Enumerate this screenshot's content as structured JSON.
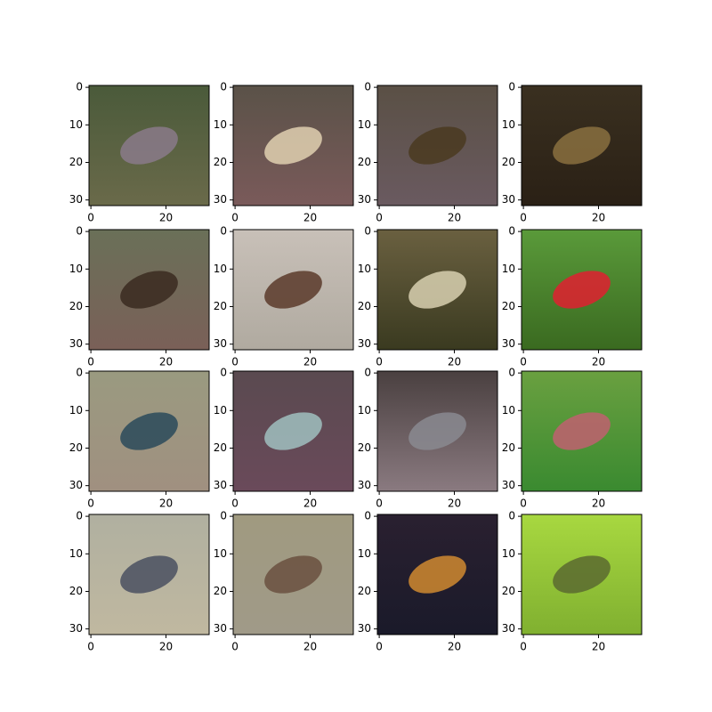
{
  "chart_data": [
    {
      "type": "image",
      "xlim": [
        -0.5,
        31.5
      ],
      "ylim": [
        31.5,
        -0.5
      ],
      "xticks": [
        0,
        20
      ],
      "yticks": [
        0,
        10,
        20,
        30
      ],
      "colors": [
        "#4a5a3a",
        "#6a6a4a",
        "#8a7a8a"
      ]
    },
    {
      "type": "image",
      "xlim": [
        -0.5,
        31.5
      ],
      "ylim": [
        31.5,
        -0.5
      ],
      "xticks": [
        0,
        20
      ],
      "yticks": [
        0,
        10,
        20,
        30
      ],
      "colors": [
        "#5a5248",
        "#7a5a5a",
        "#e0d0b0"
      ]
    },
    {
      "type": "image",
      "xlim": [
        -0.5,
        31.5
      ],
      "ylim": [
        31.5,
        -0.5
      ],
      "xticks": [
        0,
        20
      ],
      "yticks": [
        0,
        10,
        20,
        30
      ],
      "colors": [
        "#5a5045",
        "#6a5a60",
        "#4a3a20"
      ]
    },
    {
      "type": "image",
      "xlim": [
        -0.5,
        31.5
      ],
      "ylim": [
        31.5,
        -0.5
      ],
      "xticks": [
        0,
        20
      ],
      "yticks": [
        0,
        10,
        20,
        30
      ],
      "colors": [
        "#3a3020",
        "#2a2015",
        "#8a7040"
      ]
    },
    {
      "type": "image",
      "xlim": [
        -0.5,
        31.5
      ],
      "ylim": [
        31.5,
        -0.5
      ],
      "xticks": [
        0,
        20
      ],
      "yticks": [
        0,
        10,
        20,
        30
      ],
      "colors": [
        "#6a7058",
        "#7a6058",
        "#3a2a20"
      ]
    },
    {
      "type": "image",
      "xlim": [
        -0.5,
        31.5
      ],
      "ylim": [
        31.5,
        -0.5
      ],
      "xticks": [
        0,
        20
      ],
      "yticks": [
        0,
        10,
        20,
        30
      ],
      "colors": [
        "#c8c0b8",
        "#b0aaa0",
        "#5a3a2a"
      ]
    },
    {
      "type": "image",
      "xlim": [
        -0.5,
        31.5
      ],
      "ylim": [
        31.5,
        -0.5
      ],
      "xticks": [
        0,
        20
      ],
      "yticks": [
        0,
        10,
        20,
        30
      ],
      "colors": [
        "#6a6040",
        "#3a3a20",
        "#d8d0b0"
      ]
    },
    {
      "type": "image",
      "xlim": [
        -0.5,
        31.5
      ],
      "ylim": [
        31.5,
        -0.5
      ],
      "xticks": [
        0,
        20
      ],
      "yticks": [
        0,
        10,
        20,
        30
      ],
      "colors": [
        "#5a9a3a",
        "#3a6a20",
        "#e02030"
      ]
    },
    {
      "type": "image",
      "xlim": [
        -0.5,
        31.5
      ],
      "ylim": [
        31.5,
        -0.5
      ],
      "xticks": [
        0,
        20
      ],
      "yticks": [
        0,
        10,
        20,
        30
      ],
      "colors": [
        "#9a9a80",
        "#a09080",
        "#2a4a5a"
      ]
    },
    {
      "type": "image",
      "xlim": [
        -0.5,
        31.5
      ],
      "ylim": [
        31.5,
        -0.5
      ],
      "xticks": [
        0,
        20
      ],
      "yticks": [
        0,
        10,
        20,
        30
      ],
      "colors": [
        "#5a4a50",
        "#6a4a5a",
        "#a0c0c0"
      ]
    },
    {
      "type": "image",
      "xlim": [
        -0.5,
        31.5
      ],
      "ylim": [
        31.5,
        -0.5
      ],
      "xticks": [
        0,
        20
      ],
      "yticks": [
        0,
        10,
        20,
        30
      ],
      "colors": [
        "#4a4040",
        "#8a7a80",
        "#8a8a90"
      ]
    },
    {
      "type": "image",
      "xlim": [
        -0.5,
        31.5
      ],
      "ylim": [
        31.5,
        -0.5
      ],
      "xticks": [
        0,
        20
      ],
      "yticks": [
        0,
        10,
        20,
        30
      ],
      "colors": [
        "#6aa040",
        "#3a8a30",
        "#c06070"
      ]
    },
    {
      "type": "image",
      "xlim": [
        -0.5,
        31.5
      ],
      "ylim": [
        31.5,
        -0.5
      ],
      "xticks": [
        0,
        20
      ],
      "yticks": [
        0,
        10,
        20,
        30
      ],
      "colors": [
        "#b0b0a0",
        "#c0b8a0",
        "#4a5060"
      ]
    },
    {
      "type": "image",
      "xlim": [
        -0.5,
        31.5
      ],
      "ylim": [
        31.5,
        -0.5
      ],
      "xticks": [
        0,
        20
      ],
      "yticks": [
        0,
        10,
        20,
        30
      ],
      "colors": [
        "#a09a80",
        "#a09a88",
        "#6a5040"
      ]
    },
    {
      "type": "image",
      "xlim": [
        -0.5,
        31.5
      ],
      "ylim": [
        31.5,
        -0.5
      ],
      "xticks": [
        0,
        20
      ],
      "yticks": [
        0,
        10,
        20,
        30
      ],
      "colors": [
        "#2a2030",
        "#1a1a2a",
        "#d08a30"
      ]
    },
    {
      "type": "image",
      "xlim": [
        -0.5,
        31.5
      ],
      "ylim": [
        31.5,
        -0.5
      ],
      "xticks": [
        0,
        20
      ],
      "yticks": [
        0,
        10,
        20,
        30
      ],
      "colors": [
        "#a8d840",
        "#80b030",
        "#5a6a30"
      ]
    }
  ]
}
